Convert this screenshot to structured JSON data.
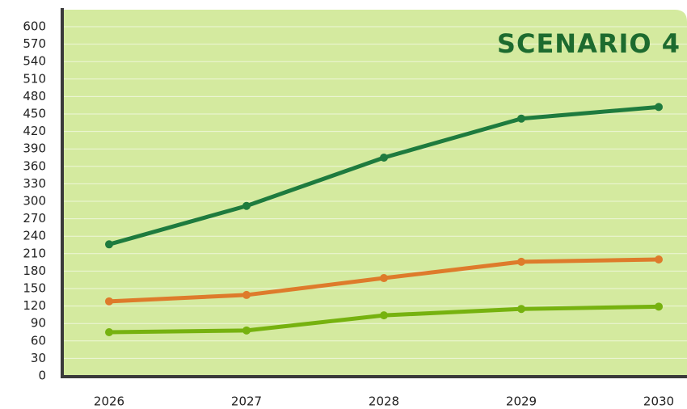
{
  "chart_data": {
    "type": "line",
    "title": "SCENARIO 4",
    "categories": [
      "2026",
      "2027",
      "2028",
      "2029",
      "2030"
    ],
    "series": [
      {
        "color": "#1e7b3e",
        "values": [
          226,
          292,
          375,
          442,
          462
        ]
      },
      {
        "color": "#de7b2b",
        "values": [
          128,
          139,
          168,
          196,
          200
        ]
      },
      {
        "color": "#76b20f",
        "values": [
          75,
          78,
          104,
          115,
          119
        ]
      }
    ],
    "ylim": [
      0,
      600
    ],
    "yticks": [
      0,
      30,
      60,
      90,
      120,
      150,
      180,
      210,
      240,
      270,
      300,
      330,
      360,
      390,
      420,
      450,
      480,
      510,
      540,
      570,
      600
    ],
    "grid": true
  }
}
